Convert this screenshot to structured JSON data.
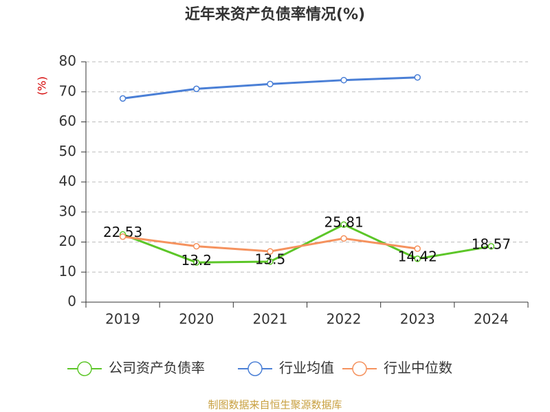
{
  "chart_data": {
    "type": "line",
    "title": "近年来资产负债率情况(%)",
    "y_label": "(%)",
    "categories": [
      "2019",
      "2020",
      "2021",
      "2022",
      "2023",
      "2024"
    ],
    "series": [
      {
        "name": "公司资产负债率",
        "color": "#5cc628",
        "values": [
          22.53,
          13.2,
          13.5,
          25.81,
          14.42,
          18.57
        ],
        "data_labels": true
      },
      {
        "name": "行业均值",
        "color": "#4a7fd6",
        "values": [
          67.8,
          71.0,
          72.6,
          73.9,
          74.8,
          null
        ]
      },
      {
        "name": "行业中位数",
        "color": "#f5925e",
        "values": [
          21.8,
          18.6,
          16.9,
          21.2,
          17.8,
          null
        ]
      }
    ],
    "ylim": [
      0,
      80
    ],
    "yticks": [
      0,
      10,
      20,
      30,
      40,
      50,
      60,
      70,
      80
    ],
    "grid": true,
    "legend": "bottom",
    "source": "制图数据来自恒生聚源数据库"
  }
}
